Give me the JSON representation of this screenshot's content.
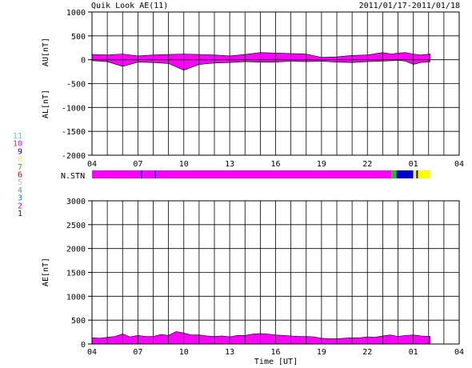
{
  "header": {
    "title": "Quik Look AE(11)",
    "date_range": "2011/01/17-2011/01/18"
  },
  "station_legend": [
    {
      "label": "11",
      "color": "#33e0e0"
    },
    {
      "label": "10",
      "color": "#ff00ff"
    },
    {
      "label": "9",
      "color": "#0000cc"
    },
    {
      "label": "8",
      "color": "#eeee66"
    },
    {
      "label": "7",
      "color": "#22bb22"
    },
    {
      "label": "6",
      "color": "#dd0000"
    },
    {
      "label": "5",
      "color": "#bbbbbb"
    },
    {
      "label": "4",
      "color": "#888888"
    },
    {
      "label": "3",
      "color": "#009999"
    },
    {
      "label": "2",
      "color": "#cc00cc"
    },
    {
      "label": "1",
      "color": "#0000cc"
    }
  ],
  "chart_data": [
    {
      "type": "area",
      "panel": "AU/AL",
      "ylabel_top": "AU[nT]",
      "ylabel_bottom": "AL[nT]",
      "ylim": [
        -2000,
        1000
      ],
      "yticks": [
        "1000",
        "500",
        "0",
        "-500",
        "-1000",
        "-1500",
        "-2000"
      ],
      "xticks": [
        "04",
        "07",
        "10",
        "13",
        "16",
        "19",
        "22",
        "01",
        "04"
      ],
      "xlim_hours": [
        4,
        28
      ],
      "fill_color": "#ff00ff",
      "grid": true,
      "au_series": {
        "name": "AU",
        "x": [
          4,
          5,
          6,
          7,
          8,
          9,
          10,
          11,
          12,
          13,
          14,
          15,
          16,
          17,
          18,
          19,
          20,
          21,
          22,
          23,
          23.6,
          24,
          24.5,
          25,
          25.5,
          26.1
        ],
        "y": [
          110,
          100,
          120,
          80,
          100,
          110,
          120,
          110,
          100,
          80,
          110,
          150,
          140,
          130,
          120,
          50,
          60,
          90,
          100,
          150,
          120,
          140,
          150,
          120,
          100,
          120
        ]
      },
      "al_series": {
        "name": "AL",
        "x": [
          4,
          5,
          6,
          7,
          8,
          9,
          10,
          11,
          12,
          13,
          14,
          15,
          16,
          17,
          18,
          19,
          20,
          21,
          22,
          23,
          23.6,
          24,
          24.5,
          25,
          25.5,
          26.1
        ],
        "y": [
          -20,
          -40,
          -140,
          -50,
          -60,
          -80,
          -220,
          -100,
          -70,
          -60,
          -40,
          -50,
          -50,
          -30,
          -40,
          -30,
          -50,
          -60,
          -40,
          -30,
          -20,
          -10,
          -30,
          -100,
          -60,
          -40
        ]
      }
    },
    {
      "type": "bar",
      "panel": "N.STN",
      "label": "N.STN",
      "segments": [
        {
          "start": 4,
          "end": 7.2,
          "color": "#ff00ff"
        },
        {
          "start": 7.2,
          "end": 7.3,
          "color": "#0000cc"
        },
        {
          "start": 7.3,
          "end": 8.1,
          "color": "#ff00ff"
        },
        {
          "start": 8.1,
          "end": 8.2,
          "color": "#0000cc"
        },
        {
          "start": 8.2,
          "end": 23.6,
          "color": "#ff00ff"
        },
        {
          "start": 23.6,
          "end": 23.9,
          "color": "#22bb22"
        },
        {
          "start": 23.9,
          "end": 25.0,
          "color": "#0000cc"
        },
        {
          "start": 25.0,
          "end": 25.2,
          "color": "#eeee66"
        },
        {
          "start": 25.2,
          "end": 25.3,
          "color": "#000000"
        },
        {
          "start": 25.3,
          "end": 26.1,
          "color": "#ffff00"
        }
      ]
    },
    {
      "type": "area",
      "panel": "AE",
      "ylabel": "AE[nT]",
      "xlabel": "Time [UT]",
      "ylim": [
        0,
        3000
      ],
      "yticks": [
        "3000",
        "2500",
        "2000",
        "1500",
        "1000",
        "500",
        "0"
      ],
      "xticks": [
        "04",
        "07",
        "10",
        "13",
        "16",
        "19",
        "22",
        "01",
        "04"
      ],
      "xlim_hours": [
        4,
        28
      ],
      "fill_color": "#ff00ff",
      "grid": true,
      "series": [
        {
          "name": "AE",
          "x": [
            4,
            4.5,
            5,
            5.5,
            6,
            6.5,
            7,
            7.5,
            8,
            8.5,
            9,
            9.5,
            10,
            10.5,
            11,
            11.5,
            12,
            12.5,
            13,
            13.5,
            14,
            14.5,
            15,
            15.5,
            16,
            16.5,
            17,
            17.5,
            18,
            18.5,
            19,
            19.5,
            20,
            20.5,
            21,
            21.5,
            22,
            22.5,
            23,
            23.5,
            24,
            24.5,
            25,
            25.5,
            26.1
          ],
          "y": [
            130,
            120,
            140,
            160,
            210,
            150,
            180,
            160,
            160,
            200,
            180,
            260,
            230,
            190,
            190,
            170,
            160,
            170,
            150,
            180,
            180,
            210,
            220,
            210,
            190,
            180,
            170,
            160,
            160,
            150,
            120,
            110,
            110,
            120,
            130,
            130,
            150,
            140,
            170,
            190,
            160,
            180,
            190,
            170,
            160
          ]
        }
      ]
    }
  ]
}
